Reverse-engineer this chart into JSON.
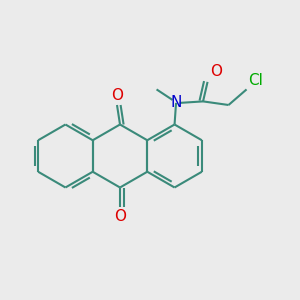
{
  "background_color": "#ebebeb",
  "bond_color": "#3a8a7a",
  "N_color": "#0000cc",
  "O_color": "#dd0000",
  "Cl_color": "#00aa00",
  "bond_width": 1.5,
  "font_size": 10,
  "fig_size": [
    3.0,
    3.0
  ],
  "dpi": 100,
  "xlim": [
    0,
    10
  ],
  "ylim": [
    0,
    10
  ]
}
